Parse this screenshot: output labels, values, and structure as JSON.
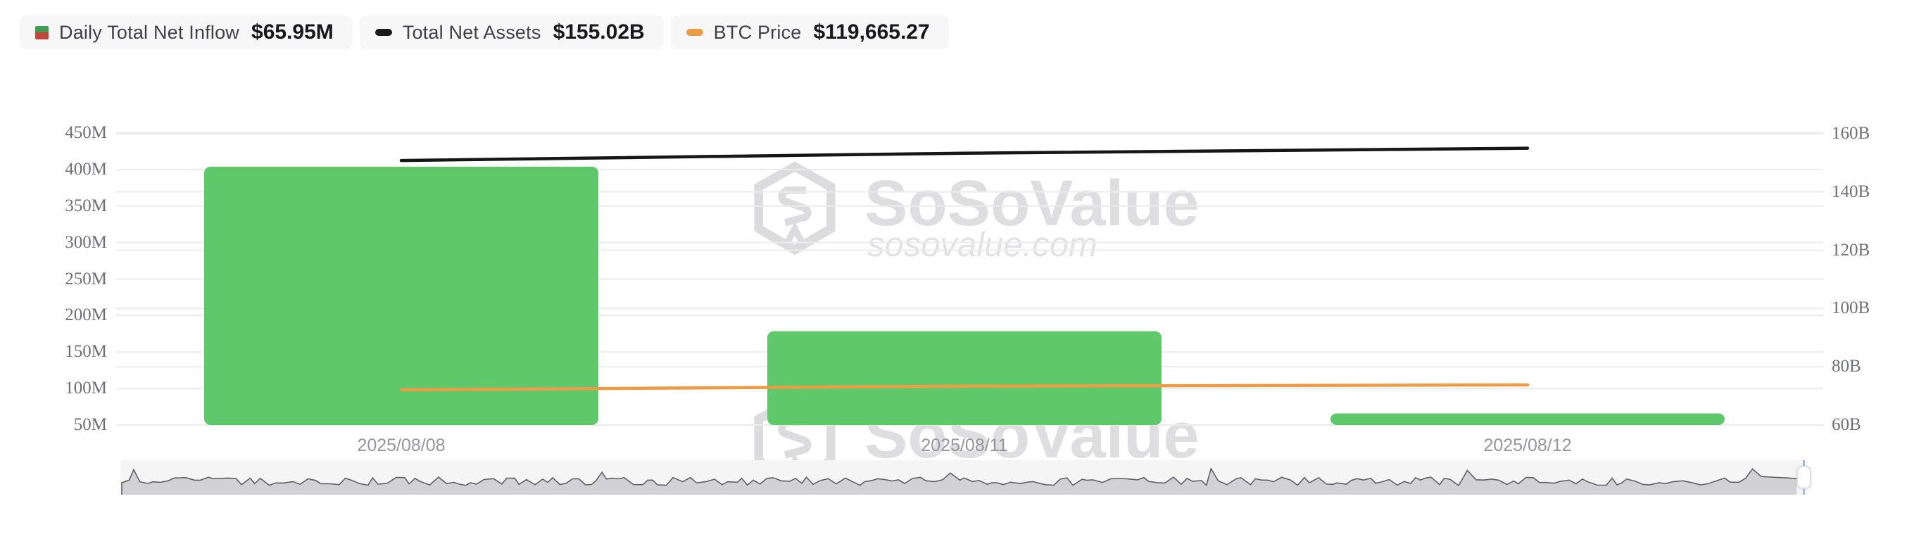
{
  "legend": {
    "items": [
      {
        "label": "Daily Total Net Inflow",
        "value": "$65.95M",
        "icon": "inflow-outflow-split-square",
        "icon_color_top": "#3e9c53",
        "icon_color_bottom": "#c2473a"
      },
      {
        "label": "Total Net Assets",
        "value": "$155.02B",
        "icon": "line-dash",
        "icon_color": "#1a1a1c"
      },
      {
        "label": "BTC Price",
        "value": "$119,665.27",
        "icon": "line-dash",
        "icon_color": "#ed9b45"
      }
    ]
  },
  "chart_data": {
    "type": "mixed",
    "title": "",
    "categories": [
      "2025/08/08",
      "2025/08/11",
      "2025/08/12"
    ],
    "series": [
      {
        "name": "Daily Total Net Inflow",
        "type": "bar",
        "axis": "left",
        "unit": "M USD",
        "color": "#5fc86b",
        "values": [
          403.9,
          178.4,
          65.95
        ]
      },
      {
        "name": "Total Net Assets",
        "type": "line",
        "axis": "right",
        "unit": "B USD",
        "color": "#161618",
        "values": [
          150.8,
          153.3,
          155.02
        ]
      },
      {
        "name": "BTC Price",
        "type": "line",
        "axis": "hidden-price",
        "unit": "USD",
        "color": "#ed9b45",
        "values": [
          116650,
          118900,
          119665.27
        ]
      }
    ],
    "left_axis": {
      "unit": "M",
      "min": 50,
      "max": 450,
      "ticks": [
        {
          "label": "450M",
          "value": 450
        },
        {
          "label": "400M",
          "value": 400
        },
        {
          "label": "350M",
          "value": 350
        },
        {
          "label": "300M",
          "value": 300
        },
        {
          "label": "250M",
          "value": 250
        },
        {
          "label": "200M",
          "value": 200
        },
        {
          "label": "150M",
          "value": 150
        },
        {
          "label": "100M",
          "value": 100
        },
        {
          "label": "50M",
          "value": 50
        }
      ]
    },
    "right_axis": {
      "unit": "B",
      "min": 60,
      "max": 160,
      "ticks": [
        {
          "label": "160B",
          "value": 160
        },
        {
          "label": "140B",
          "value": 140
        },
        {
          "label": "120B",
          "value": 120
        },
        {
          "label": "100B",
          "value": 100
        },
        {
          "label": "80B",
          "value": 80
        },
        {
          "label": "60B",
          "value": 60
        }
      ]
    },
    "grid": true,
    "legend_position": "top-left",
    "colors": {
      "bar_green": "#5fc86b",
      "net_assets_black": "#161618",
      "btc_orange": "#ed9b45",
      "gridline": "#ebebed",
      "axis_text": "#6e6e76",
      "date_text": "#95959c"
    }
  },
  "watermark": {
    "brand": "SoSoValue",
    "domain": "sosovalue.com"
  },
  "minimap": {
    "description": "history preview area",
    "handle": "right-zoom-handle"
  }
}
